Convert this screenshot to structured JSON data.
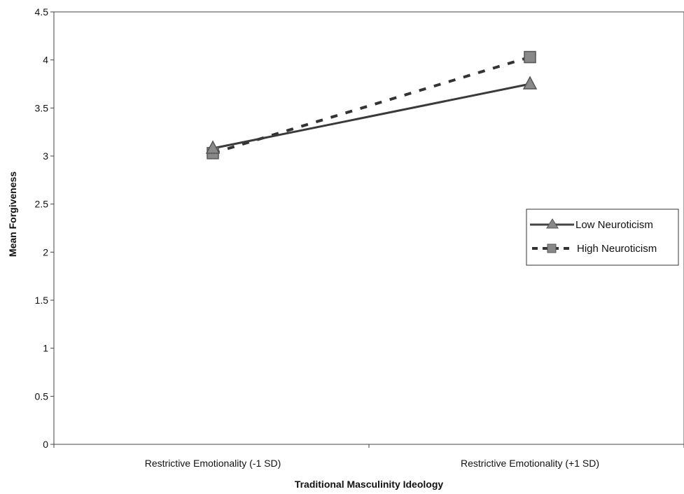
{
  "chart_data": {
    "type": "line",
    "title": "",
    "xlabel": "Traditional Masculinity Ideology",
    "ylabel": "Mean Forgiveness",
    "categories": [
      "Restrictive Emotionality (-1 SD)",
      "Restrictive Emotionality (+1 SD)"
    ],
    "ylim": [
      0,
      4.5
    ],
    "yticks": [
      "0",
      "0.5",
      "1",
      "1.5",
      "2",
      "2.5",
      "3",
      "3.5",
      "4",
      "4.5"
    ],
    "grid": false,
    "legend_position": "right",
    "series": [
      {
        "name": "Low Neuroticism",
        "values": [
          3.08,
          3.75
        ],
        "line_style": "solid",
        "marker": "triangle",
        "color": "#555555"
      },
      {
        "name": "High Neuroticism",
        "values": [
          3.03,
          4.03
        ],
        "line_style": "dashed",
        "marker": "square",
        "color": "#555555"
      }
    ]
  }
}
